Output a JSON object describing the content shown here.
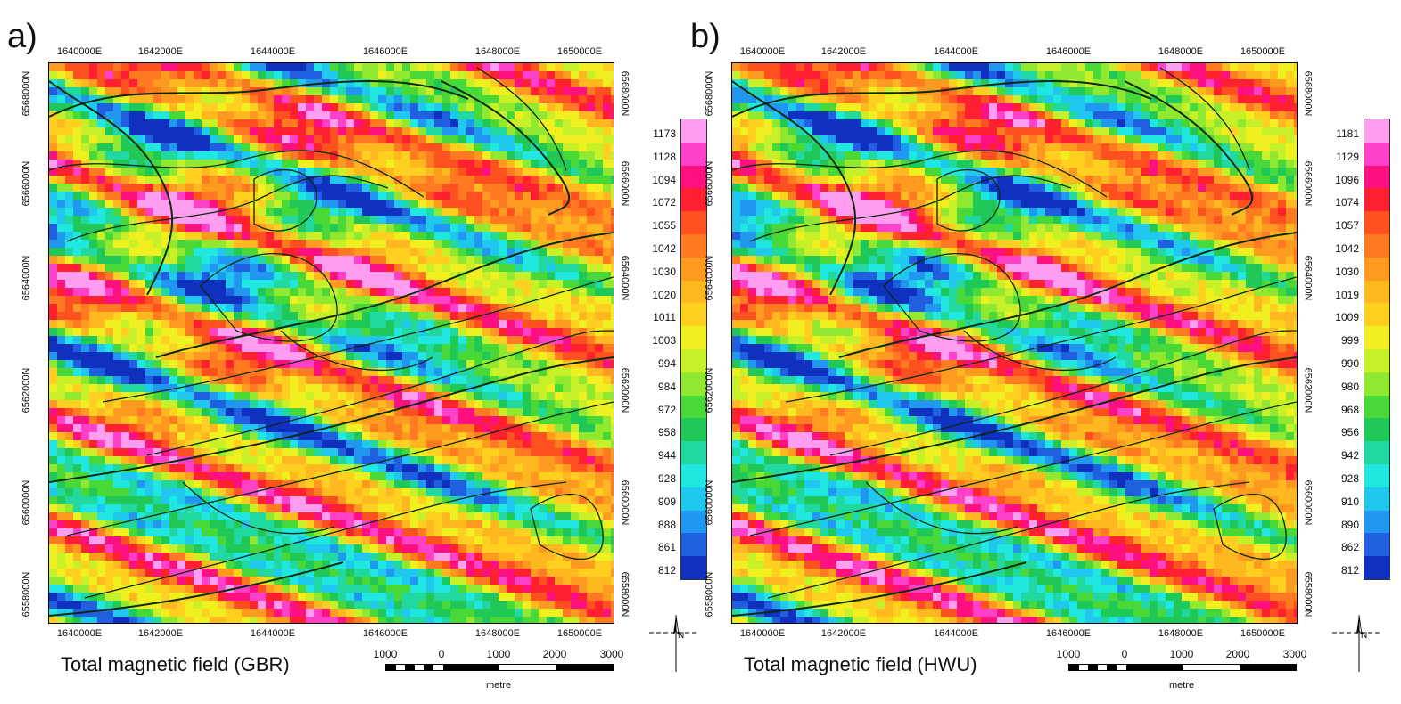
{
  "panels": [
    {
      "label": "a)",
      "caption": "Total magnetic field (GBR)",
      "x_ticks": [
        "1640000E",
        "1642000E",
        "1644000E",
        "1646000E",
        "1648000E",
        "1650000E"
      ],
      "y_ticks_left": [
        "6568000N",
        "6566000N",
        "6564000N",
        "6562000N",
        "6560000N",
        "6558000N"
      ],
      "y_ticks_right": [
        "6568000N",
        "6566000N",
        "6564000N",
        "6562000N",
        "6560000N",
        "6558000N"
      ],
      "colorbar_labels": [
        "1173",
        "1128",
        "1094",
        "1072",
        "1055",
        "1042",
        "1030",
        "1020",
        "1011",
        "1003",
        "994",
        "984",
        "972",
        "958",
        "944",
        "928",
        "909",
        "888",
        "861",
        "812"
      ]
    },
    {
      "label": "b)",
      "caption": "Total magnetic field (HWU)",
      "x_ticks": [
        "1640000E",
        "1642000E",
        "1644000E",
        "1646000E",
        "1648000E",
        "1650000E"
      ],
      "y_ticks_left": [
        "6568000N",
        "6566000N",
        "6564000N",
        "6562000N",
        "6560000N",
        "6558000N"
      ],
      "y_ticks_right": [
        "6568000N",
        "6566000N",
        "6564000N",
        "6562000N",
        "6560000N",
        "6558000N"
      ],
      "colorbar_labels": [
        "1181",
        "1129",
        "1096",
        "1074",
        "1057",
        "1042",
        "1030",
        "1019",
        "1009",
        "999",
        "990",
        "980",
        "968",
        "956",
        "942",
        "928",
        "910",
        "890",
        "862",
        "812"
      ]
    }
  ],
  "scalebar": {
    "labels": [
      "1000",
      "0",
      "1000",
      "2000",
      "3000"
    ],
    "unit": "metre"
  },
  "north_label": "N",
  "colors": {
    "ramp": [
      "#ff9ef0",
      "#ff40c8",
      "#ff1080",
      "#ff2030",
      "#ff5020",
      "#ff7a20",
      "#ff9a20",
      "#ffb820",
      "#ffd020",
      "#f0f020",
      "#c8f028",
      "#90e830",
      "#48d838",
      "#20c858",
      "#20d8a0",
      "#20e8e0",
      "#20c8f0",
      "#2098f0",
      "#2060e0",
      "#1030c0"
    ],
    "contour": "#0a2a0a"
  }
}
